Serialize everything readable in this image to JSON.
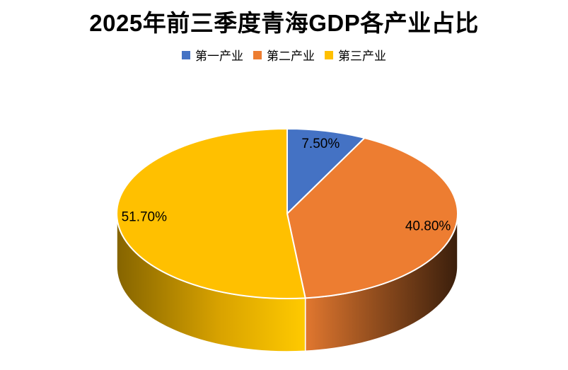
{
  "title": "2025年前三季度青海GDP各产业占比",
  "legend": {
    "items": [
      {
        "label": "第一产业",
        "color": "#4472C4"
      },
      {
        "label": "第二产业",
        "color": "#ED7D31"
      },
      {
        "label": "第三产业",
        "color": "#FFC000"
      }
    ]
  },
  "chart_data": {
    "type": "pie",
    "style": "3d",
    "title": "2025年前三季度青海GDP各产业占比",
    "categories": [
      "第一产业",
      "第二产业",
      "第三产业"
    ],
    "values": [
      7.5,
      40.8,
      51.7
    ],
    "data_labels": [
      "7.50%",
      "40.80%",
      "51.70%"
    ],
    "colors": [
      "#4472C4",
      "#ED7D31",
      "#FFC000"
    ],
    "start_angle_deg": 0,
    "direction": "clockwise",
    "legend_position": "top",
    "separator_color": "#FFFFFF",
    "background": "#FFFFFF"
  }
}
